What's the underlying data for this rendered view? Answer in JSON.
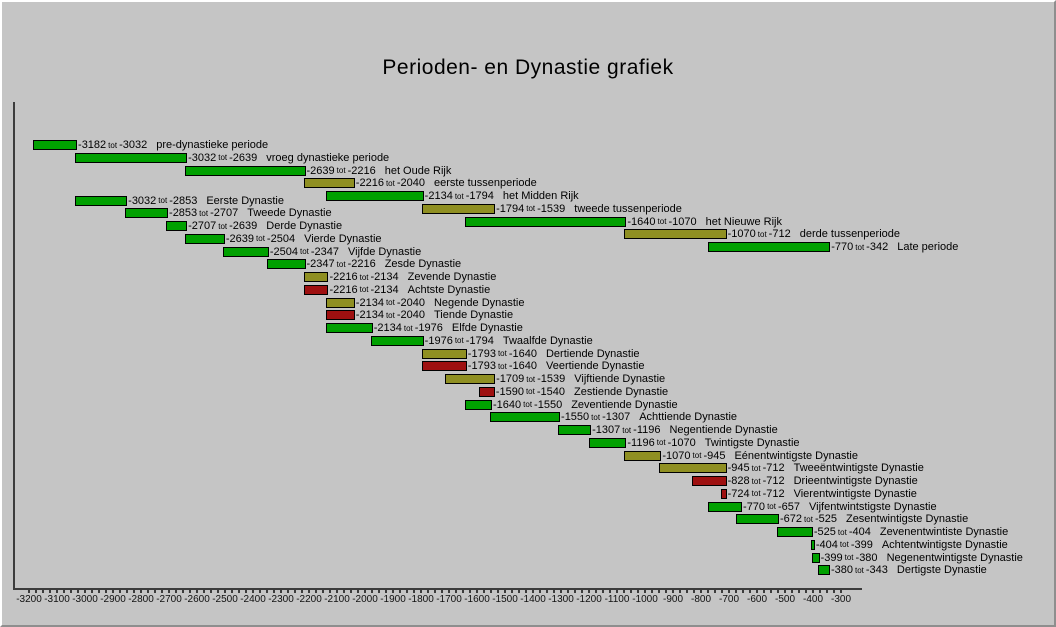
{
  "chart_data": {
    "type": "bar",
    "variant": "gantt-timeline",
    "title": "Perioden- en Dynastie grafiek",
    "range_separator": "tot",
    "legend": "none",
    "grid": "off",
    "colors": {
      "green": "#00A000",
      "olive": "#8F8F22",
      "red": "#9E1010",
      "background": "#C5C5C5",
      "axis": "#3c3c3c"
    },
    "x_axis": {
      "min": -3200,
      "max": -300,
      "labeled_tick_step": 100,
      "minor_tick_step": 25,
      "tick_labels": [
        "-3200",
        "-3100",
        "-3000",
        "-2900",
        "-2800",
        "-2700",
        "-2600",
        "-2500",
        "-2400",
        "-2300",
        "-2200",
        "-2100",
        "-2000",
        "-1900",
        "-1800",
        "-1700",
        "-1600",
        "-1500",
        "-1400",
        "-1300",
        "-1200",
        "-1100",
        "-1000",
        "-900",
        "-800",
        "-700",
        "-600",
        "-500",
        "-400",
        "-300"
      ]
    },
    "periods": [
      {
        "start": -3182,
        "end": -3032,
        "name": "pre-dynastieke periode",
        "color": "green"
      },
      {
        "start": -3032,
        "end": -2639,
        "name": "vroeg dynastieke periode",
        "color": "green"
      },
      {
        "start": -2639,
        "end": -2216,
        "name": "het Oude Rijk",
        "color": "green"
      },
      {
        "start": -2216,
        "end": -2040,
        "name": "eerste tussenperiode",
        "color": "olive"
      },
      {
        "start": -2134,
        "end": -1794,
        "name": "het Midden Rijk",
        "color": "green"
      },
      {
        "start": -1794,
        "end": -1539,
        "name": "tweede tussenperiode",
        "color": "olive"
      },
      {
        "start": -1640,
        "end": -1070,
        "name": "het Nieuwe Rijk",
        "color": "green"
      },
      {
        "start": -1070,
        "end": -712,
        "name": "derde tussenperiode",
        "color": "olive"
      },
      {
        "start": -770,
        "end": -342,
        "name": "Late periode",
        "color": "green"
      }
    ],
    "dynasties": [
      {
        "start": -3032,
        "end": -2853,
        "name": "Eerste Dynastie",
        "color": "green"
      },
      {
        "start": -2853,
        "end": -2707,
        "name": "Tweede Dynastie",
        "color": "green"
      },
      {
        "start": -2707,
        "end": -2639,
        "name": "Derde Dynastie",
        "color": "green"
      },
      {
        "start": -2639,
        "end": -2504,
        "name": "Vierde Dynastie",
        "color": "green"
      },
      {
        "start": -2504,
        "end": -2347,
        "name": "Vijfde Dynastie",
        "color": "green"
      },
      {
        "start": -2347,
        "end": -2216,
        "name": "Zesde Dynastie",
        "color": "green"
      },
      {
        "start": -2216,
        "end": -2134,
        "name": "Zevende Dynastie",
        "color": "olive"
      },
      {
        "start": -2216,
        "end": -2134,
        "name": "Achtste Dynastie",
        "color": "red"
      },
      {
        "start": -2134,
        "end": -2040,
        "name": "Negende Dynastie",
        "color": "olive"
      },
      {
        "start": -2134,
        "end": -2040,
        "name": "Tiende Dynastie",
        "color": "red"
      },
      {
        "start": -2134,
        "end": -1976,
        "name": "Elfde Dynastie",
        "color": "green"
      },
      {
        "start": -1976,
        "end": -1794,
        "name": "Twaalfde Dynastie",
        "color": "green"
      },
      {
        "start": -1793,
        "end": -1640,
        "name": "Dertiende Dynastie",
        "color": "olive"
      },
      {
        "start": -1793,
        "end": -1640,
        "name": "Veertiende Dynastie",
        "color": "red"
      },
      {
        "start": -1709,
        "end": -1539,
        "name": "Vijftiende Dynastie",
        "color": "olive"
      },
      {
        "start": -1590,
        "end": -1540,
        "name": "Zestiende Dynastie",
        "color": "red"
      },
      {
        "start": -1640,
        "end": -1550,
        "name": "Zeventiende Dynastie",
        "color": "green"
      },
      {
        "start": -1550,
        "end": -1307,
        "name": "Achttiende Dynastie",
        "color": "green"
      },
      {
        "start": -1307,
        "end": -1196,
        "name": "Negentiende Dynastie",
        "color": "green"
      },
      {
        "start": -1196,
        "end": -1070,
        "name": "Twintigste Dynastie",
        "color": "green"
      },
      {
        "start": -1070,
        "end": -945,
        "name": "Eénentwintigste Dynastie",
        "color": "olive"
      },
      {
        "start": -945,
        "end": -712,
        "name": "Tweeëntwintigste Dynastie",
        "color": "olive"
      },
      {
        "start": -828,
        "end": -712,
        "name": "Drieentwintigste Dynastie",
        "color": "red"
      },
      {
        "start": -724,
        "end": -712,
        "name": "Vierentwintigste Dynastie",
        "color": "red"
      },
      {
        "start": -770,
        "end": -657,
        "name": "Vijfentwintstigste Dynastie",
        "color": "green"
      },
      {
        "start": -672,
        "end": -525,
        "name": "Zesentwintigste Dynastie",
        "color": "green"
      },
      {
        "start": -525,
        "end": -404,
        "name": "Zevenentwintiste Dynastie",
        "color": "green"
      },
      {
        "start": -404,
        "end": -399,
        "name": "Achtentwintigste Dynastie",
        "color": "green"
      },
      {
        "start": -399,
        "end": -380,
        "name": "Negenentwintigste Dynastie",
        "color": "green"
      },
      {
        "start": -380,
        "end": -343,
        "name": "Dertigste Dynastie",
        "color": "green"
      }
    ]
  }
}
